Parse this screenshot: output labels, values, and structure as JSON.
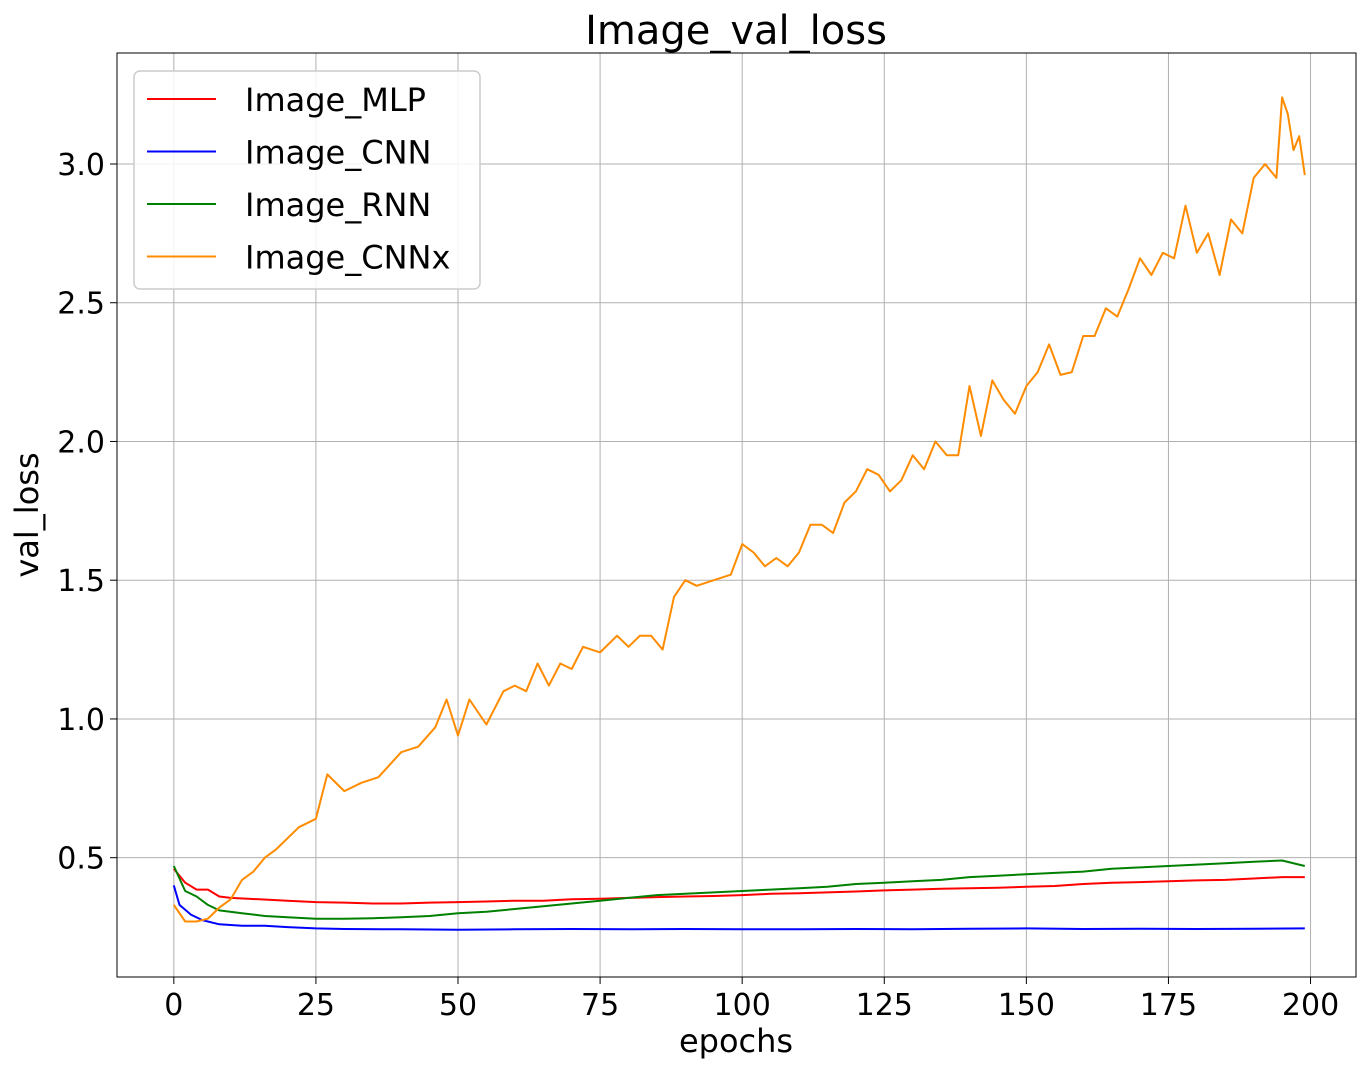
{
  "chart_data": {
    "type": "line",
    "title": "Image_val_loss",
    "xlabel": "epochs",
    "ylabel": "val_loss",
    "xlim": [
      -10,
      208
    ],
    "ylim": [
      0.07,
      3.4
    ],
    "xticks": [
      0,
      25,
      50,
      75,
      100,
      125,
      150,
      175,
      200
    ],
    "yticks": [
      0.5,
      1.0,
      1.5,
      2.0,
      2.5,
      3.0
    ],
    "grid": true,
    "legend_position": "upper-left",
    "series": [
      {
        "name": "Image_MLP",
        "color": "#ff0000",
        "points": [
          [
            0,
            0.46
          ],
          [
            2,
            0.41
          ],
          [
            4,
            0.385
          ],
          [
            6,
            0.385
          ],
          [
            8,
            0.36
          ],
          [
            10,
            0.355
          ],
          [
            15,
            0.35
          ],
          [
            20,
            0.345
          ],
          [
            25,
            0.34
          ],
          [
            30,
            0.338
          ],
          [
            35,
            0.335
          ],
          [
            40,
            0.335
          ],
          [
            45,
            0.338
          ],
          [
            50,
            0.34
          ],
          [
            55,
            0.342
          ],
          [
            60,
            0.345
          ],
          [
            65,
            0.345
          ],
          [
            70,
            0.35
          ],
          [
            75,
            0.352
          ],
          [
            80,
            0.355
          ],
          [
            85,
            0.358
          ],
          [
            90,
            0.36
          ],
          [
            95,
            0.362
          ],
          [
            100,
            0.365
          ],
          [
            105,
            0.37
          ],
          [
            110,
            0.372
          ],
          [
            115,
            0.375
          ],
          [
            120,
            0.378
          ],
          [
            125,
            0.382
          ],
          [
            130,
            0.385
          ],
          [
            135,
            0.388
          ],
          [
            140,
            0.39
          ],
          [
            145,
            0.392
          ],
          [
            150,
            0.395
          ],
          [
            155,
            0.398
          ],
          [
            160,
            0.405
          ],
          [
            165,
            0.41
          ],
          [
            170,
            0.412
          ],
          [
            175,
            0.415
          ],
          [
            180,
            0.418
          ],
          [
            185,
            0.42
          ],
          [
            190,
            0.425
          ],
          [
            195,
            0.43
          ],
          [
            199,
            0.43
          ]
        ]
      },
      {
        "name": "Image_CNN",
        "color": "#0000ff",
        "points": [
          [
            0,
            0.4
          ],
          [
            1,
            0.33
          ],
          [
            3,
            0.295
          ],
          [
            5,
            0.275
          ],
          [
            8,
            0.26
          ],
          [
            12,
            0.255
          ],
          [
            16,
            0.255
          ],
          [
            20,
            0.25
          ],
          [
            25,
            0.245
          ],
          [
            30,
            0.243
          ],
          [
            40,
            0.242
          ],
          [
            50,
            0.24
          ],
          [
            60,
            0.242
          ],
          [
            70,
            0.243
          ],
          [
            80,
            0.242
          ],
          [
            90,
            0.243
          ],
          [
            100,
            0.242
          ],
          [
            110,
            0.242
          ],
          [
            120,
            0.243
          ],
          [
            130,
            0.242
          ],
          [
            140,
            0.244
          ],
          [
            150,
            0.245
          ],
          [
            160,
            0.243
          ],
          [
            170,
            0.244
          ],
          [
            180,
            0.243
          ],
          [
            190,
            0.244
          ],
          [
            199,
            0.245
          ]
        ]
      },
      {
        "name": "Image_RNN",
        "color": "#008000",
        "points": [
          [
            0,
            0.47
          ],
          [
            2,
            0.38
          ],
          [
            4,
            0.36
          ],
          [
            6,
            0.33
          ],
          [
            8,
            0.31
          ],
          [
            12,
            0.3
          ],
          [
            16,
            0.29
          ],
          [
            20,
            0.285
          ],
          [
            25,
            0.28
          ],
          [
            30,
            0.28
          ],
          [
            35,
            0.282
          ],
          [
            40,
            0.285
          ],
          [
            45,
            0.29
          ],
          [
            50,
            0.3
          ],
          [
            55,
            0.305
          ],
          [
            60,
            0.315
          ],
          [
            65,
            0.325
          ],
          [
            70,
            0.335
          ],
          [
            75,
            0.345
          ],
          [
            80,
            0.355
          ],
          [
            85,
            0.365
          ],
          [
            90,
            0.37
          ],
          [
            95,
            0.375
          ],
          [
            100,
            0.38
          ],
          [
            105,
            0.385
          ],
          [
            110,
            0.39
          ],
          [
            115,
            0.395
          ],
          [
            120,
            0.405
          ],
          [
            125,
            0.41
          ],
          [
            130,
            0.415
          ],
          [
            135,
            0.42
          ],
          [
            140,
            0.43
          ],
          [
            145,
            0.435
          ],
          [
            150,
            0.44
          ],
          [
            155,
            0.445
          ],
          [
            160,
            0.45
          ],
          [
            165,
            0.46
          ],
          [
            170,
            0.465
          ],
          [
            175,
            0.47
          ],
          [
            180,
            0.475
          ],
          [
            185,
            0.48
          ],
          [
            190,
            0.485
          ],
          [
            195,
            0.49
          ],
          [
            199,
            0.47
          ]
        ]
      },
      {
        "name": "Image_CNNx",
        "color": "#ff8c00",
        "points": [
          [
            0,
            0.33
          ],
          [
            2,
            0.27
          ],
          [
            4,
            0.27
          ],
          [
            6,
            0.28
          ],
          [
            8,
            0.32
          ],
          [
            10,
            0.35
          ],
          [
            12,
            0.42
          ],
          [
            14,
            0.45
          ],
          [
            16,
            0.5
          ],
          [
            18,
            0.53
          ],
          [
            20,
            0.57
          ],
          [
            22,
            0.61
          ],
          [
            25,
            0.64
          ],
          [
            27,
            0.8
          ],
          [
            30,
            0.74
          ],
          [
            33,
            0.77
          ],
          [
            36,
            0.79
          ],
          [
            40,
            0.88
          ],
          [
            43,
            0.9
          ],
          [
            46,
            0.97
          ],
          [
            48,
            1.07
          ],
          [
            50,
            0.94
          ],
          [
            52,
            1.07
          ],
          [
            55,
            0.98
          ],
          [
            58,
            1.1
          ],
          [
            60,
            1.12
          ],
          [
            62,
            1.1
          ],
          [
            64,
            1.2
          ],
          [
            66,
            1.12
          ],
          [
            68,
            1.2
          ],
          [
            70,
            1.18
          ],
          [
            72,
            1.26
          ],
          [
            75,
            1.24
          ],
          [
            78,
            1.3
          ],
          [
            80,
            1.26
          ],
          [
            82,
            1.3
          ],
          [
            84,
            1.3
          ],
          [
            86,
            1.25
          ],
          [
            88,
            1.44
          ],
          [
            90,
            1.5
          ],
          [
            92,
            1.48
          ],
          [
            95,
            1.5
          ],
          [
            98,
            1.52
          ],
          [
            100,
            1.63
          ],
          [
            102,
            1.6
          ],
          [
            104,
            1.55
          ],
          [
            106,
            1.58
          ],
          [
            108,
            1.55
          ],
          [
            110,
            1.6
          ],
          [
            112,
            1.7
          ],
          [
            114,
            1.7
          ],
          [
            116,
            1.67
          ],
          [
            118,
            1.78
          ],
          [
            120,
            1.82
          ],
          [
            122,
            1.9
          ],
          [
            124,
            1.88
          ],
          [
            126,
            1.82
          ],
          [
            128,
            1.86
          ],
          [
            130,
            1.95
          ],
          [
            132,
            1.9
          ],
          [
            134,
            2.0
          ],
          [
            136,
            1.95
          ],
          [
            138,
            1.95
          ],
          [
            140,
            2.2
          ],
          [
            142,
            2.02
          ],
          [
            144,
            2.22
          ],
          [
            146,
            2.15
          ],
          [
            148,
            2.1
          ],
          [
            150,
            2.2
          ],
          [
            152,
            2.25
          ],
          [
            154,
            2.35
          ],
          [
            156,
            2.24
          ],
          [
            158,
            2.25
          ],
          [
            160,
            2.38
          ],
          [
            162,
            2.38
          ],
          [
            164,
            2.48
          ],
          [
            166,
            2.45
          ],
          [
            168,
            2.55
          ],
          [
            170,
            2.66
          ],
          [
            172,
            2.6
          ],
          [
            174,
            2.68
          ],
          [
            176,
            2.66
          ],
          [
            178,
            2.85
          ],
          [
            180,
            2.68
          ],
          [
            182,
            2.75
          ],
          [
            184,
            2.6
          ],
          [
            186,
            2.8
          ],
          [
            188,
            2.75
          ],
          [
            190,
            2.95
          ],
          [
            192,
            3.0
          ],
          [
            194,
            2.95
          ],
          [
            195,
            3.24
          ],
          [
            196,
            3.18
          ],
          [
            197,
            3.05
          ],
          [
            198,
            3.1
          ],
          [
            199,
            2.96
          ]
        ]
      }
    ]
  }
}
